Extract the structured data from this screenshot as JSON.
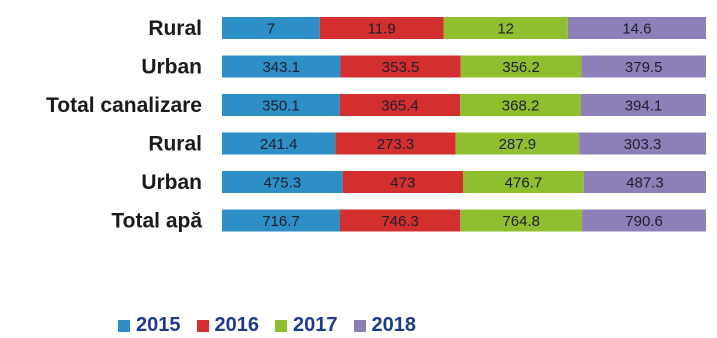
{
  "chart_data": {
    "type": "bar",
    "orientation": "horizontal",
    "stacked": true,
    "categories": [
      "Rural",
      "Urban",
      "Total canalizare",
      "Rural",
      "Urban",
      "Total apă"
    ],
    "series": [
      {
        "name": "2015",
        "color": "#2e8fc6",
        "values": [
          7,
          343.1,
          350.1,
          241.4,
          475.3,
          716.7
        ]
      },
      {
        "name": "2016",
        "color": "#d32f2f",
        "values": [
          11.9,
          353.5,
          365.4,
          273.3,
          473,
          746.3
        ]
      },
      {
        "name": "2017",
        "color": "#8fbe2e",
        "values": [
          12,
          356.2,
          368.2,
          287.9,
          476.7,
          764.8
        ]
      },
      {
        "name": "2018",
        "color": "#8d7fb7",
        "values": [
          14.6,
          379.5,
          394.1,
          303.3,
          487.3,
          790.6
        ]
      }
    ],
    "title": "",
    "xlabel": "",
    "ylabel": "",
    "grid": false,
    "legend_position": "bottom"
  }
}
